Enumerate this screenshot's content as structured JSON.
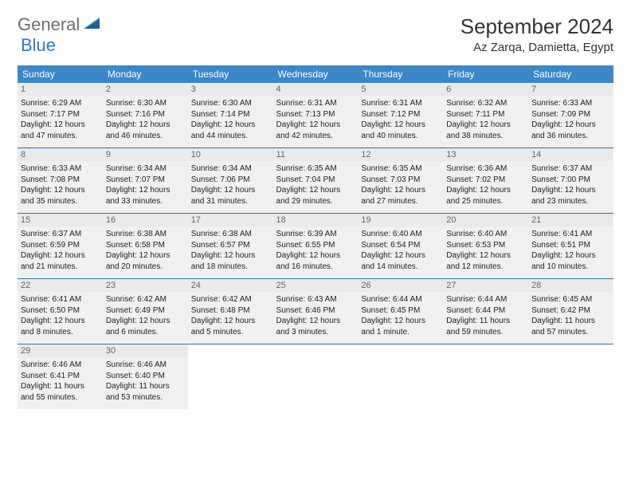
{
  "brand": {
    "part1": "General",
    "part2": "Blue"
  },
  "title": "September 2024",
  "location": "Az Zarqa, Damietta, Egypt",
  "calendar": {
    "header_bg": "#3b87c8",
    "header_fg": "#ffffff",
    "rule_color": "#2f6fa6",
    "daynum_bg": "#eaeaea",
    "font_family": "Arial",
    "day_headers": [
      "Sunday",
      "Monday",
      "Tuesday",
      "Wednesday",
      "Thursday",
      "Friday",
      "Saturday"
    ],
    "weeks": [
      [
        {
          "n": "1",
          "sr": "6:29 AM",
          "ss": "7:17 PM",
          "dl": "12 hours and 47 minutes."
        },
        {
          "n": "2",
          "sr": "6:30 AM",
          "ss": "7:16 PM",
          "dl": "12 hours and 46 minutes."
        },
        {
          "n": "3",
          "sr": "6:30 AM",
          "ss": "7:14 PM",
          "dl": "12 hours and 44 minutes."
        },
        {
          "n": "4",
          "sr": "6:31 AM",
          "ss": "7:13 PM",
          "dl": "12 hours and 42 minutes."
        },
        {
          "n": "5",
          "sr": "6:31 AM",
          "ss": "7:12 PM",
          "dl": "12 hours and 40 minutes."
        },
        {
          "n": "6",
          "sr": "6:32 AM",
          "ss": "7:11 PM",
          "dl": "12 hours and 38 minutes."
        },
        {
          "n": "7",
          "sr": "6:33 AM",
          "ss": "7:09 PM",
          "dl": "12 hours and 36 minutes."
        }
      ],
      [
        {
          "n": "8",
          "sr": "6:33 AM",
          "ss": "7:08 PM",
          "dl": "12 hours and 35 minutes."
        },
        {
          "n": "9",
          "sr": "6:34 AM",
          "ss": "7:07 PM",
          "dl": "12 hours and 33 minutes."
        },
        {
          "n": "10",
          "sr": "6:34 AM",
          "ss": "7:06 PM",
          "dl": "12 hours and 31 minutes."
        },
        {
          "n": "11",
          "sr": "6:35 AM",
          "ss": "7:04 PM",
          "dl": "12 hours and 29 minutes."
        },
        {
          "n": "12",
          "sr": "6:35 AM",
          "ss": "7:03 PM",
          "dl": "12 hours and 27 minutes."
        },
        {
          "n": "13",
          "sr": "6:36 AM",
          "ss": "7:02 PM",
          "dl": "12 hours and 25 minutes."
        },
        {
          "n": "14",
          "sr": "6:37 AM",
          "ss": "7:00 PM",
          "dl": "12 hours and 23 minutes."
        }
      ],
      [
        {
          "n": "15",
          "sr": "6:37 AM",
          "ss": "6:59 PM",
          "dl": "12 hours and 21 minutes."
        },
        {
          "n": "16",
          "sr": "6:38 AM",
          "ss": "6:58 PM",
          "dl": "12 hours and 20 minutes."
        },
        {
          "n": "17",
          "sr": "6:38 AM",
          "ss": "6:57 PM",
          "dl": "12 hours and 18 minutes."
        },
        {
          "n": "18",
          "sr": "6:39 AM",
          "ss": "6:55 PM",
          "dl": "12 hours and 16 minutes."
        },
        {
          "n": "19",
          "sr": "6:40 AM",
          "ss": "6:54 PM",
          "dl": "12 hours and 14 minutes."
        },
        {
          "n": "20",
          "sr": "6:40 AM",
          "ss": "6:53 PM",
          "dl": "12 hours and 12 minutes."
        },
        {
          "n": "21",
          "sr": "6:41 AM",
          "ss": "6:51 PM",
          "dl": "12 hours and 10 minutes."
        }
      ],
      [
        {
          "n": "22",
          "sr": "6:41 AM",
          "ss": "6:50 PM",
          "dl": "12 hours and 8 minutes."
        },
        {
          "n": "23",
          "sr": "6:42 AM",
          "ss": "6:49 PM",
          "dl": "12 hours and 6 minutes."
        },
        {
          "n": "24",
          "sr": "6:42 AM",
          "ss": "6:48 PM",
          "dl": "12 hours and 5 minutes."
        },
        {
          "n": "25",
          "sr": "6:43 AM",
          "ss": "6:46 PM",
          "dl": "12 hours and 3 minutes."
        },
        {
          "n": "26",
          "sr": "6:44 AM",
          "ss": "6:45 PM",
          "dl": "12 hours and 1 minute."
        },
        {
          "n": "27",
          "sr": "6:44 AM",
          "ss": "6:44 PM",
          "dl": "11 hours and 59 minutes."
        },
        {
          "n": "28",
          "sr": "6:45 AM",
          "ss": "6:42 PM",
          "dl": "11 hours and 57 minutes."
        }
      ],
      [
        {
          "n": "29",
          "sr": "6:46 AM",
          "ss": "6:41 PM",
          "dl": "11 hours and 55 minutes."
        },
        {
          "n": "30",
          "sr": "6:46 AM",
          "ss": "6:40 PM",
          "dl": "11 hours and 53 minutes."
        },
        null,
        null,
        null,
        null,
        null
      ]
    ],
    "labels": {
      "sunrise": "Sunrise:",
      "sunset": "Sunset:",
      "daylight": "Daylight:"
    }
  }
}
